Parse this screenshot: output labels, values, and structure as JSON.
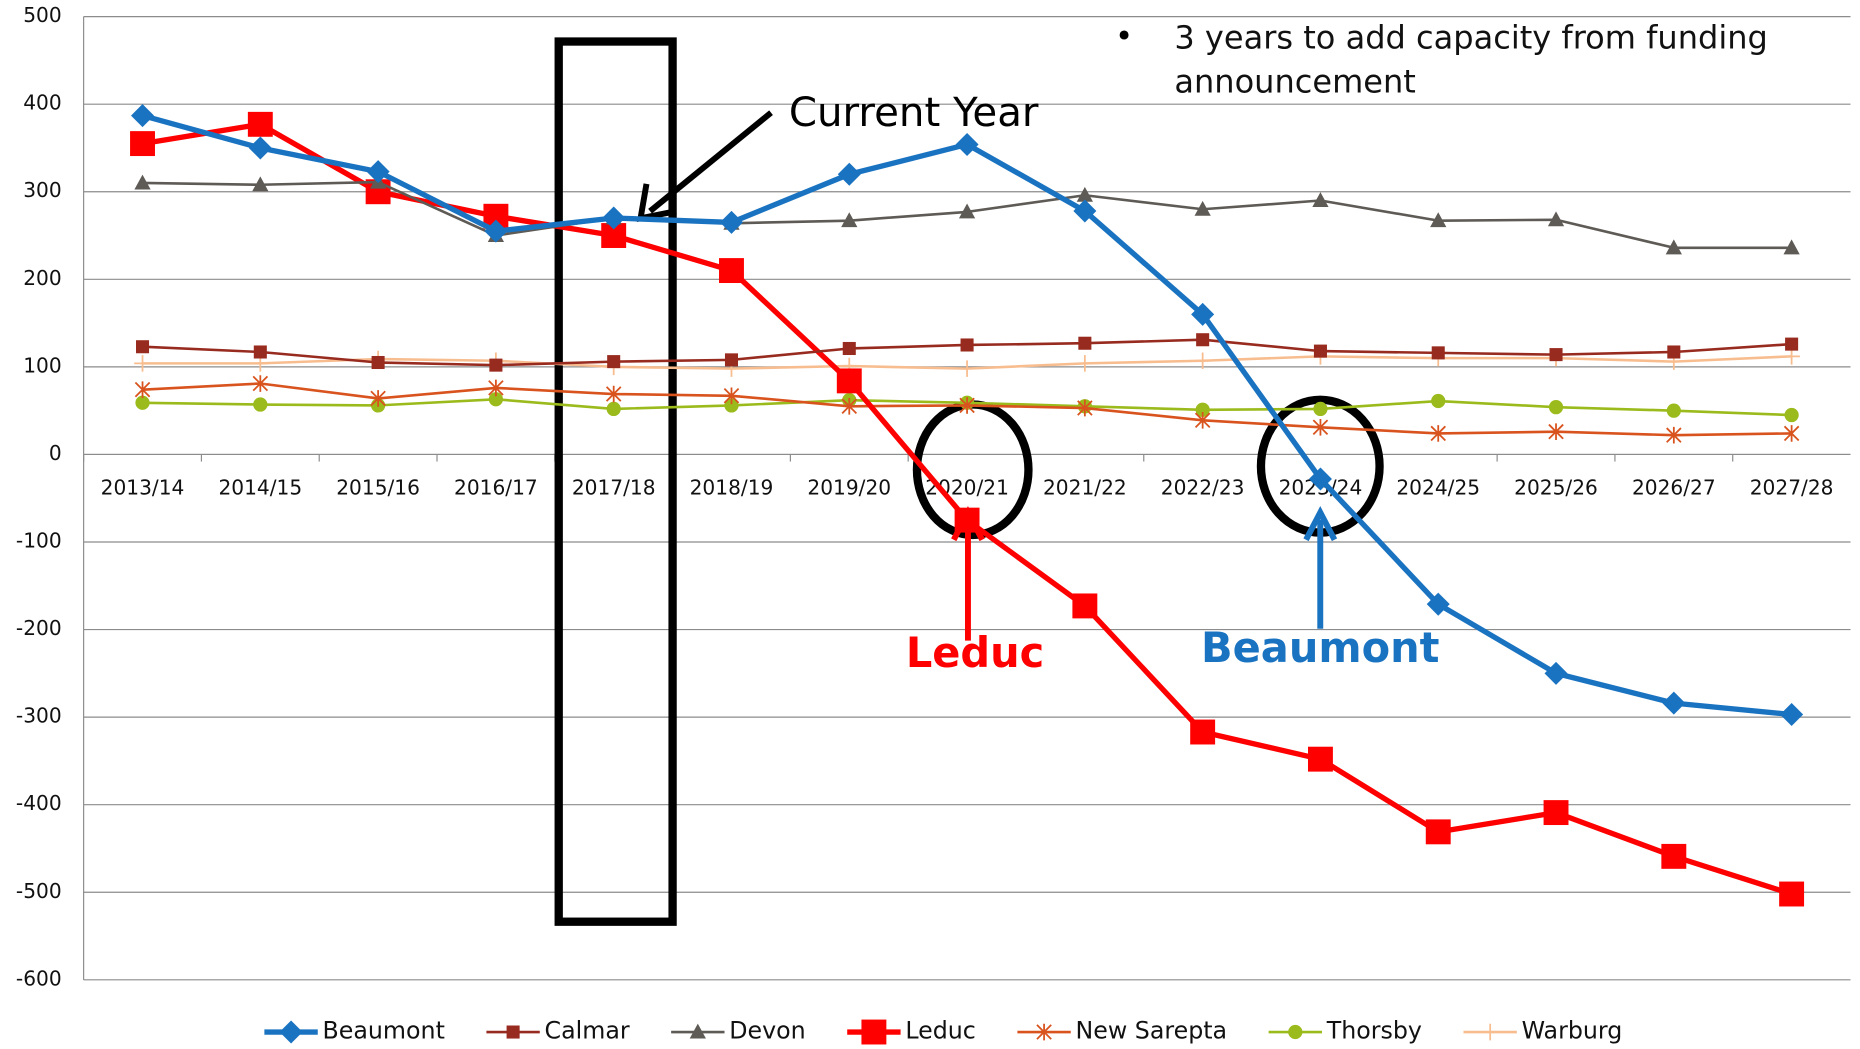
{
  "chart_data": {
    "type": "line",
    "categories": [
      "2013/14",
      "2014/15",
      "2015/16",
      "2016/17",
      "2017/18",
      "2018/19",
      "2019/20",
      "2020/21",
      "2021/22",
      "2022/23",
      "2023/24",
      "2024/25",
      "2025/26",
      "2026/27",
      "2027/28"
    ],
    "ylim": [
      -600,
      500
    ],
    "yticks": [
      -600,
      -500,
      -400,
      -300,
      -200,
      -100,
      0,
      100,
      200,
      300,
      400,
      500
    ],
    "grid": true,
    "legend": "bottom",
    "series": [
      {
        "name": "Beaumont",
        "color": "#1a73c1",
        "marker": "diamond",
        "values": [
          387,
          350,
          323,
          255,
          270,
          265,
          320,
          354,
          278,
          160,
          -28,
          -171,
          -250,
          -284,
          -297
        ]
      },
      {
        "name": "Calmar",
        "color": "#982b1f",
        "marker": "square",
        "values": [
          123,
          117,
          105,
          102,
          106,
          108,
          121,
          125,
          127,
          131,
          118,
          116,
          114,
          117,
          126
        ]
      },
      {
        "name": "Devon",
        "color": "#5e5a55",
        "marker": "triangle",
        "values": [
          310,
          308,
          311,
          250,
          270,
          264,
          267,
          277,
          296,
          280,
          290,
          267,
          268,
          236,
          236
        ]
      },
      {
        "name": "Leduc",
        "color": "#ff0000",
        "marker": "big-square",
        "values": [
          355,
          377,
          300,
          272,
          250,
          210,
          84,
          -75,
          -173,
          -317,
          -348,
          -431,
          -409,
          -459,
          -502
        ]
      },
      {
        "name": "New Sarepta",
        "color": "#d9531e",
        "marker": "star",
        "values": [
          74,
          81,
          64,
          76,
          69,
          67,
          55,
          56,
          53,
          39,
          31,
          24,
          26,
          22,
          24
        ]
      },
      {
        "name": "Thorsby",
        "color": "#9bbb1c",
        "marker": "circle",
        "values": [
          59,
          57,
          56,
          63,
          52,
          56,
          62,
          59,
          55,
          51,
          52,
          61,
          54,
          50,
          45
        ]
      },
      {
        "name": "Warburg",
        "color": "#f8bd8f",
        "marker": "plus",
        "values": [
          104,
          104,
          109,
          107,
          100,
          98,
          101,
          98,
          104,
          107,
          112,
          110,
          110,
          106,
          112
        ]
      }
    ],
    "annotations": [
      "3 years to add capacity from funding announcement",
      "Current Year",
      "Leduc",
      "Beaumont"
    ]
  }
}
